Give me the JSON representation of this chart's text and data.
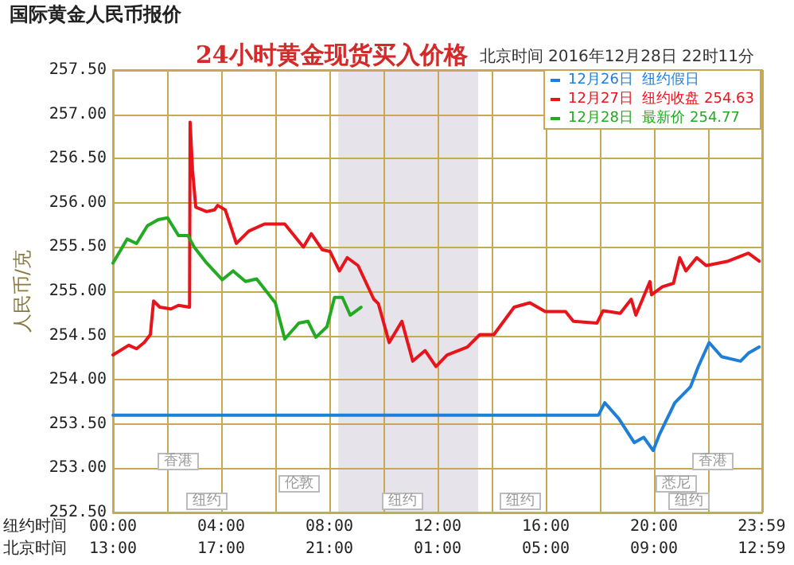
{
  "chart_data": {
    "type": "line",
    "title": "24小时黄金现货买入价格",
    "subtitle": "北京时间 2016年12月28日 22时11分",
    "xlabel": "纽约时间",
    "x2label": "北京时间",
    "ylabel": "人民币/克",
    "annotations": [
      "国际黄金人民币报价",
      "香港",
      "伦敦",
      "纽约",
      "纽约",
      "纽约",
      "悉尼",
      "香港",
      "纽约"
    ],
    "xlim": [
      0,
      24
    ],
    "xticks": [
      {
        "value": 0,
        "label": "00:00"
      },
      {
        "value": 2,
        "label": null
      },
      {
        "value": 4,
        "label": "04:00"
      },
      {
        "value": 6,
        "label": null
      },
      {
        "value": 8,
        "label": "08:00"
      },
      {
        "value": 10,
        "label": null
      },
      {
        "value": 12,
        "label": "12:00"
      },
      {
        "value": 14,
        "label": null
      },
      {
        "value": 16,
        "label": "16:00"
      },
      {
        "value": 18,
        "label": null
      },
      {
        "value": 20,
        "label": "20:00"
      },
      {
        "value": 22,
        "label": null
      },
      {
        "value": 23.98,
        "label": "23:59"
      }
    ],
    "x2lim": [
      "2016-12-27T13:00",
      "2016-12-28T13:00"
    ],
    "x2ticks": [
      {
        "value": "2016-12-27T13:00",
        "label": "13:00"
      },
      {
        "value": "2016-12-27T17:00",
        "label": "17:00"
      },
      {
        "value": "2016-12-27T21:00",
        "label": "21:00"
      },
      {
        "value": "2016-12-28T01:00",
        "label": "01:00"
      },
      {
        "value": "2016-12-28T05:00",
        "label": "05:00"
      },
      {
        "value": "2016-12-28T09:00",
        "label": "09:00"
      },
      {
        "value": "2016-12-28T12:59",
        "label": "12:59"
      }
    ],
    "ylim": [
      252.5,
      257.5
    ],
    "yticks": [
      {
        "value": 252.5,
        "label": "252.50"
      },
      {
        "value": 253,
        "label": "253.00"
      },
      {
        "value": 253.5,
        "label": "253.50"
      },
      {
        "value": 254,
        "label": "254.00"
      },
      {
        "value": 254.5,
        "label": "254.50"
      },
      {
        "value": 255,
        "label": "255.00"
      },
      {
        "value": 255.5,
        "label": "255.50"
      },
      {
        "value": 256,
        "label": "256.00"
      },
      {
        "value": 256.5,
        "label": "256.50"
      },
      {
        "value": 257,
        "label": "257.00"
      },
      {
        "value": 257.5,
        "label": "257.50"
      }
    ],
    "grid": true,
    "legend": "top right",
    "marker": "none",
    "line_style": "solid",
    "bands": [
      {
        "axis": "x",
        "from": 8.33,
        "to": 13.5,
        "color": "#e6e3ea"
      }
    ],
    "series": [
      {
        "name": "12月26日  纽约假日",
        "color": "#1f7fd6",
        "x": [
          0,
          17.95,
          18.18,
          18.7,
          19.27,
          19.62,
          19.97,
          20.2,
          20.77,
          21.35,
          21.64,
          22.04,
          22.5,
          23.2,
          23.49,
          23.89
        ],
        "values": [
          253.6,
          253.6,
          253.74,
          253.56,
          253.29,
          253.35,
          253.2,
          253.38,
          253.74,
          253.92,
          254.15,
          254.42,
          254.26,
          254.21,
          254.3,
          254.37
        ]
      },
      {
        "name": "12月27日  纽约收盘 254.63",
        "color": "#e8141c",
        "x": [
          0,
          0.58,
          0.87,
          1.15,
          1.38,
          1.5,
          1.73,
          2.14,
          2.42,
          2.83,
          2.85,
          2.94,
          3.06,
          3.46,
          3.75,
          3.87,
          4.15,
          4.56,
          5.02,
          5.6,
          6.35,
          7.04,
          7.33,
          7.73,
          8.02,
          8.37,
          8.66,
          9.06,
          9.64,
          9.81,
          10.21,
          10.68,
          11.08,
          11.54,
          11.94,
          12.35,
          13.1,
          13.56,
          14.08,
          14.83,
          15.41,
          15.98,
          16.73,
          17.02,
          17.89,
          18.12,
          18.75,
          19.16,
          19.33,
          19.85,
          19.91,
          20.31,
          20.72,
          20.95,
          21.18,
          21.58,
          21.93,
          22.74,
          23.49,
          23.89
        ],
        "values": [
          254.28,
          254.39,
          254.35,
          254.42,
          254.51,
          254.89,
          254.82,
          254.8,
          254.84,
          254.82,
          256.91,
          256.37,
          255.95,
          255.9,
          255.92,
          255.97,
          255.92,
          255.54,
          255.68,
          255.76,
          255.76,
          255.5,
          255.65,
          255.47,
          255.45,
          255.23,
          255.38,
          255.29,
          254.91,
          254.86,
          254.42,
          254.66,
          254.21,
          254.33,
          254.15,
          254.28,
          254.37,
          254.51,
          254.51,
          254.82,
          254.87,
          254.77,
          254.77,
          254.66,
          254.64,
          254.78,
          254.75,
          254.91,
          254.73,
          255.11,
          254.96,
          255.05,
          255.09,
          255.38,
          255.23,
          255.38,
          255.29,
          255.34,
          255.43,
          255.34
        ]
      },
      {
        "name": "12月28日  最新价 254.77",
        "color": "#22aa22",
        "x": [
          0,
          0.52,
          0.87,
          1.27,
          1.67,
          2.02,
          2.42,
          2.77,
          3.0,
          3.46,
          4.04,
          4.44,
          4.9,
          5.31,
          6.0,
          6.35,
          6.87,
          7.21,
          7.5,
          7.91,
          8.19,
          8.48,
          8.77,
          9.17
        ],
        "values": [
          255.32,
          255.59,
          255.54,
          255.74,
          255.81,
          255.83,
          255.63,
          255.63,
          255.5,
          255.32,
          255.13,
          255.23,
          255.11,
          255.14,
          254.87,
          254.46,
          254.64,
          254.66,
          254.48,
          254.6,
          254.93,
          254.93,
          254.73,
          254.82
        ]
      }
    ]
  }
}
